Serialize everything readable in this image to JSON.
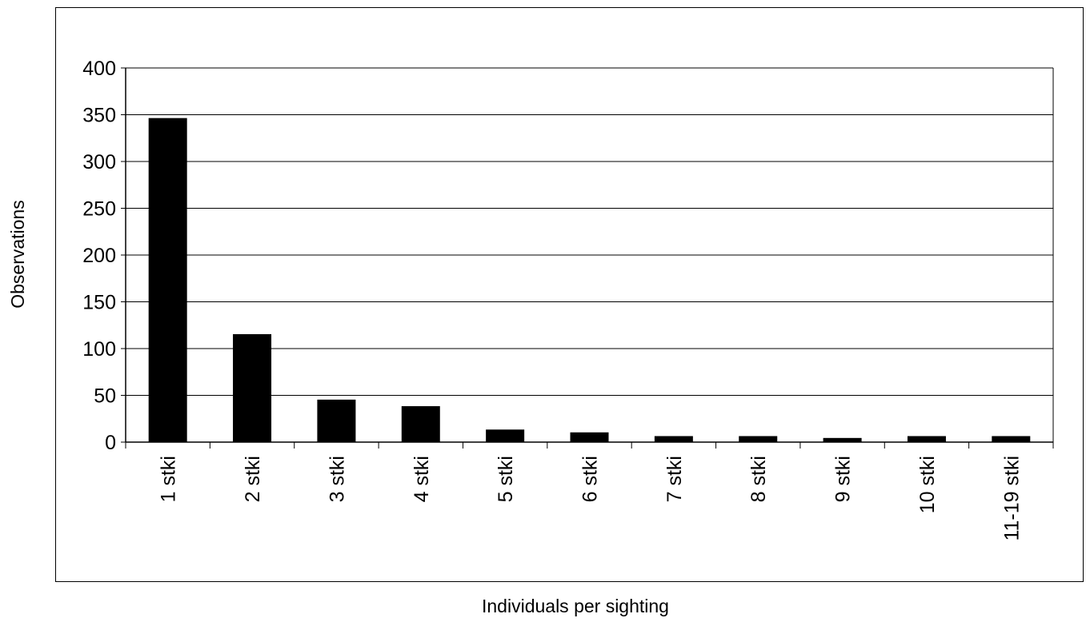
{
  "chart_data": {
    "type": "bar",
    "title": "",
    "xlabel": "Individuals per sighting",
    "ylabel": "Observations",
    "categories": [
      "1 stki",
      "2 stki",
      "3 stki",
      "4 stki",
      "5 stki",
      "6 stki",
      "7 stki",
      "8 stki",
      "9 stki",
      "10 stki",
      "11-19 stki"
    ],
    "values": [
      346,
      115,
      45,
      38,
      13,
      10,
      6,
      6,
      4,
      6,
      6
    ],
    "ylim": [
      0,
      400
    ],
    "yticks": [
      0,
      50,
      100,
      150,
      200,
      250,
      300,
      350,
      400
    ],
    "grid": true,
    "legend": "none",
    "bar_color": "#000000"
  }
}
